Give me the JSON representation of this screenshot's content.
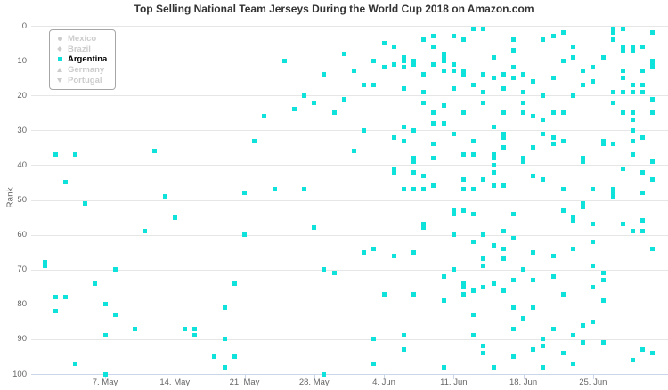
{
  "title": "Top Selling National Team Jerseys During the World Cup 2018 on Amazon.com",
  "y_axis_title": "Rank",
  "colors": {
    "argentina": "#0ee2da",
    "disabled": "#cccccc",
    "active_label": "#000000",
    "grid": "#e6e6e6",
    "axis_line": "#ccd6eb",
    "tick_label": "#666666",
    "title": "#333333"
  },
  "legend": [
    {
      "label": "Mexico",
      "marker": "circle",
      "active": false
    },
    {
      "label": "Brazil",
      "marker": "diamond",
      "active": false
    },
    {
      "label": "Argentina",
      "marker": "square",
      "active": true
    },
    {
      "label": "Germany",
      "marker": "tri-up",
      "active": false
    },
    {
      "label": "Portugal",
      "marker": "tri-down",
      "active": false
    }
  ],
  "chart_data": {
    "type": "scatter",
    "title": "Top Selling National Team Jerseys During the World Cup 2018 on Amazon.com",
    "xlabel": "",
    "ylabel": "Rank",
    "ylim": [
      0,
      100
    ],
    "y_inverted": true,
    "grid": true,
    "legend_position": "top-left",
    "x_range": [
      "May 1 2018",
      "Jul 1 2018"
    ],
    "x_tick_labels": [
      "7. May",
      "14. May",
      "21. May",
      "28. May",
      "4. Jun",
      "11. Jun",
      "18. Jun",
      "25. Jun"
    ],
    "y_tick_labels": [
      0,
      10,
      20,
      30,
      40,
      50,
      60,
      70,
      80,
      90,
      100
    ],
    "series": [
      {
        "name": "Argentina",
        "points_by_day": [
          {
            "d": "5/1",
            "r": [
              68,
              69
            ]
          },
          {
            "d": "5/2",
            "r": [
              37,
              78,
              82
            ]
          },
          {
            "d": "5/3",
            "r": [
              45,
              78
            ]
          },
          {
            "d": "5/4",
            "r": [
              37,
              97
            ]
          },
          {
            "d": "5/5",
            "r": [
              51
            ]
          },
          {
            "d": "5/6",
            "r": [
              74
            ]
          },
          {
            "d": "5/7",
            "r": [
              80,
              89,
              100
            ]
          },
          {
            "d": "5/8",
            "r": [
              70,
              83
            ]
          },
          {
            "d": "5/10",
            "r": [
              87
            ]
          },
          {
            "d": "5/11",
            "r": [
              59
            ]
          },
          {
            "d": "5/12",
            "r": [
              36
            ]
          },
          {
            "d": "5/13",
            "r": [
              49
            ]
          },
          {
            "d": "5/14",
            "r": [
              55
            ]
          },
          {
            "d": "5/15",
            "r": [
              87
            ]
          },
          {
            "d": "5/16",
            "r": [
              87,
              89
            ]
          },
          {
            "d": "5/18",
            "r": [
              95
            ]
          },
          {
            "d": "5/19",
            "r": [
              81,
              90,
              98
            ]
          },
          {
            "d": "5/20",
            "r": [
              74,
              95
            ]
          },
          {
            "d": "5/21",
            "r": [
              48,
              60
            ]
          },
          {
            "d": "5/22",
            "r": [
              33
            ]
          },
          {
            "d": "5/23",
            "r": [
              26
            ]
          },
          {
            "d": "5/24",
            "r": [
              47
            ]
          },
          {
            "d": "5/25",
            "r": [
              10
            ]
          },
          {
            "d": "5/26",
            "r": [
              24
            ]
          },
          {
            "d": "5/27",
            "r": [
              20,
              47
            ]
          },
          {
            "d": "5/28",
            "r": [
              22,
              58
            ]
          },
          {
            "d": "5/29",
            "r": [
              14,
              70,
              100
            ]
          },
          {
            "d": "5/30",
            "r": [
              25,
              71
            ]
          },
          {
            "d": "5/31",
            "r": [
              8,
              21
            ]
          },
          {
            "d": "6/1",
            "r": [
              13,
              36
            ]
          },
          {
            "d": "6/2",
            "r": [
              17,
              30,
              65
            ]
          },
          {
            "d": "6/3",
            "r": [
              10,
              17,
              64,
              90,
              97
            ]
          },
          {
            "d": "6/4",
            "r": [
              5,
              12,
              77
            ]
          },
          {
            "d": "6/5",
            "r": [
              6,
              11,
              32,
              41,
              42,
              66
            ]
          },
          {
            "d": "6/6",
            "r": [
              9,
              10,
              12,
              18,
              29,
              33,
              47,
              89,
              93
            ]
          },
          {
            "d": "6/7",
            "r": [
              10,
              11,
              30,
              38,
              39,
              42,
              47,
              65,
              77
            ]
          },
          {
            "d": "6/8",
            "r": [
              4,
              14,
              19,
              22,
              43,
              47,
              57,
              58
            ]
          },
          {
            "d": "6/9",
            "r": [
              3,
              6,
              11,
              25,
              28,
              34,
              38,
              46
            ]
          },
          {
            "d": "6/10",
            "r": [
              8,
              9,
              10,
              13,
              23,
              28,
              72,
              79,
              98
            ]
          },
          {
            "d": "6/11",
            "r": [
              3,
              11,
              13,
              18,
              31,
              53,
              54,
              60,
              70
            ]
          },
          {
            "d": "6/12",
            "r": [
              4,
              13,
              14,
              25,
              37,
              44,
              47,
              53,
              74,
              75,
              77
            ]
          },
          {
            "d": "6/13",
            "r": [
              1,
              17,
              33,
              37,
              47,
              54,
              62,
              76,
              83,
              89
            ]
          },
          {
            "d": "6/14",
            "r": [
              1,
              14,
              19,
              22,
              44,
              60,
              67,
              69,
              75,
              92,
              94
            ]
          },
          {
            "d": "6/15",
            "r": [
              9,
              15,
              29,
              37,
              38,
              40,
              42,
              46,
              63,
              74,
              98
            ]
          },
          {
            "d": "6/16",
            "r": [
              14,
              18,
              25,
              31,
              32,
              35,
              46,
              59,
              64,
              67,
              76
            ]
          },
          {
            "d": "6/17",
            "r": [
              4,
              7,
              12,
              15,
              54,
              61,
              73,
              81,
              87,
              95
            ]
          },
          {
            "d": "6/18",
            "r": [
              14,
              19,
              22,
              25,
              38,
              39,
              70,
              84
            ]
          },
          {
            "d": "6/19",
            "r": [
              16,
              26,
              35,
              43,
              65,
              73,
              81,
              93
            ]
          },
          {
            "d": "6/20",
            "r": [
              4,
              20,
              27,
              31,
              44,
              90,
              92,
              98
            ]
          },
          {
            "d": "6/21",
            "r": [
              3,
              15,
              25,
              32,
              34,
              66,
              72,
              87
            ]
          },
          {
            "d": "6/22",
            "r": [
              2,
              10,
              25,
              33,
              47,
              53,
              77,
              94
            ]
          },
          {
            "d": "6/23",
            "r": [
              6,
              9,
              20,
              55,
              56,
              64,
              89,
              97
            ]
          },
          {
            "d": "6/24",
            "r": [
              13,
              17,
              38,
              39,
              51,
              52,
              86,
              91
            ]
          },
          {
            "d": "6/25",
            "r": [
              12,
              16,
              47,
              57,
              62,
              69,
              75,
              85
            ]
          },
          {
            "d": "6/26",
            "r": [
              9,
              33,
              34,
              71,
              73,
              79,
              91
            ]
          },
          {
            "d": "6/27",
            "r": [
              1,
              2,
              4,
              19,
              22,
              34,
              47,
              48,
              49
            ]
          },
          {
            "d": "6/28",
            "r": [
              1,
              6,
              7,
              13,
              15,
              19,
              25,
              41,
              57
            ]
          },
          {
            "d": "6/29",
            "r": [
              6,
              7,
              17,
              19,
              25,
              27,
              30,
              33,
              37,
              59,
              96
            ]
          },
          {
            "d": "6/30",
            "r": [
              6,
              13,
              17,
              19,
              32,
              42,
              48,
              56,
              59,
              93
            ]
          },
          {
            "d": "7/1",
            "r": [
              2,
              10,
              11,
              12,
              21,
              25,
              39,
              44,
              64,
              94
            ]
          }
        ]
      }
    ]
  }
}
